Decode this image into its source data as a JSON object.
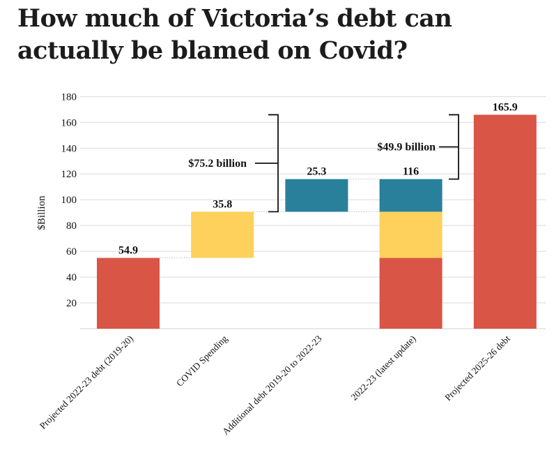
{
  "title": "How much of Victoria’s debt can actually be blamed on Covid?",
  "chart_data": {
    "type": "bar",
    "subtype": "waterfall",
    "ylabel": "$Billion",
    "xlabel": "",
    "ylim": [
      0,
      180
    ],
    "yticks": [
      20,
      40,
      60,
      80,
      100,
      120,
      140,
      160,
      180
    ],
    "grid": true,
    "categories": [
      "Projected 2022-23 debt  (2019-20)",
      "COVID Spending",
      "Additional debt  2019-20 to 2022-23",
      "2022-23 (latest update)",
      "Projected 2025-26 debt"
    ],
    "bars": [
      {
        "segments": [
          {
            "from": 0,
            "to": 54.9,
            "color": "#d95546"
          }
        ],
        "label": "54.9"
      },
      {
        "segments": [
          {
            "from": 54.9,
            "to": 90.7,
            "color": "#fed15c"
          }
        ],
        "label": "35.8"
      },
      {
        "segments": [
          {
            "from": 90.7,
            "to": 116,
            "color": "#29809b"
          }
        ],
        "label": "25.3"
      },
      {
        "segments": [
          {
            "from": 0,
            "to": 54.9,
            "color": "#d95546"
          },
          {
            "from": 54.9,
            "to": 90.7,
            "color": "#fed15c"
          },
          {
            "from": 90.7,
            "to": 116,
            "color": "#29809b"
          }
        ],
        "label": "116"
      },
      {
        "segments": [
          {
            "from": 0,
            "to": 165.9,
            "color": "#d95546"
          }
        ],
        "label": "165.9"
      }
    ],
    "connectors": [
      54.9,
      90.7,
      116
    ],
    "annotations": [
      {
        "label": "$75.2 billion",
        "from": 90.7,
        "to": 165.9,
        "between_bars": [
          1,
          2
        ]
      },
      {
        "label": "$49.9 billion",
        "from": 116,
        "to": 165.9,
        "between_bars": [
          3,
          4
        ]
      }
    ]
  }
}
